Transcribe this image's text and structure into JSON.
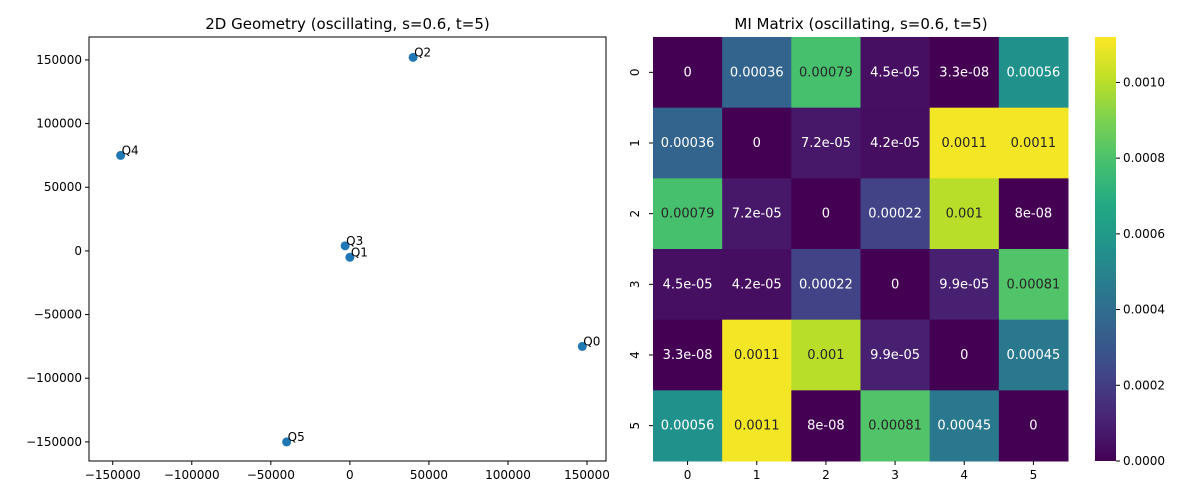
{
  "chart_data": [
    {
      "type": "scatter",
      "title": "2D Geometry (oscillating, s=0.6, t=5)",
      "xlabel": "",
      "ylabel": "",
      "xlim": [
        -165000,
        162000
      ],
      "ylim": [
        -165000,
        168000
      ],
      "x_ticks": [
        -150000,
        -100000,
        -50000,
        0,
        50000,
        100000,
        150000
      ],
      "y_ticks": [
        -150000,
        -100000,
        -50000,
        0,
        50000,
        100000,
        150000
      ],
      "x_tick_labels": [
        "−150000",
        "−100000",
        "−50000",
        "0",
        "50000",
        "100000",
        "150000"
      ],
      "y_tick_labels": [
        "−150000",
        "−100000",
        "−50000",
        "0",
        "50000",
        "100000",
        "150000"
      ],
      "point_color": "#1f77b4",
      "points": [
        {
          "label": "Q0",
          "x": 147000,
          "y": -75000
        },
        {
          "label": "Q1",
          "x": 0,
          "y": -5000
        },
        {
          "label": "Q2",
          "x": 40000,
          "y": 152000
        },
        {
          "label": "Q3",
          "x": -3000,
          "y": 4000
        },
        {
          "label": "Q4",
          "x": -145000,
          "y": 75000
        },
        {
          "label": "Q5",
          "x": -40000,
          "y": -150000
        }
      ]
    },
    {
      "type": "heatmap",
      "title": "MI Matrix (oscillating, s=0.6, t=5)",
      "colormap": "viridis",
      "vmin": 0,
      "vmax": 0.00112,
      "rows": [
        "0",
        "1",
        "2",
        "3",
        "4",
        "5"
      ],
      "cols": [
        "0",
        "1",
        "2",
        "3",
        "4",
        "5"
      ],
      "values": [
        [
          0,
          0.00036,
          0.00079,
          4.5e-05,
          3.3e-08,
          0.00056
        ],
        [
          0.00036,
          0,
          7.2e-05,
          4.2e-05,
          0.0011,
          0.0011
        ],
        [
          0.00079,
          7.2e-05,
          0,
          0.00022,
          0.001,
          8e-08
        ],
        [
          4.5e-05,
          4.2e-05,
          0.00022,
          0,
          9.9e-05,
          0.00081
        ],
        [
          3.3e-08,
          0.0011,
          0.001,
          9.9e-05,
          0,
          0.00045
        ],
        [
          0.00056,
          0.0011,
          8e-08,
          0.00081,
          0.00045,
          0
        ]
      ],
      "annotations": [
        [
          "0",
          "0.00036",
          "0.00079",
          "4.5e-05",
          "3.3e-08",
          "0.00056"
        ],
        [
          "0.00036",
          "0",
          "7.2e-05",
          "4.2e-05",
          "0.0011",
          "0.0011"
        ],
        [
          "0.00079",
          "7.2e-05",
          "0",
          "0.00022",
          "0.001",
          "8e-08"
        ],
        [
          "4.5e-05",
          "4.2e-05",
          "0.00022",
          "0",
          "9.9e-05",
          "0.00081"
        ],
        [
          "3.3e-08",
          "0.0011",
          "0.001",
          "9.9e-05",
          "0",
          "0.00045"
        ],
        [
          "0.00056",
          "0.0011",
          "8e-08",
          "0.00081",
          "0.00045",
          "0"
        ]
      ],
      "colorbar_ticks": [
        0,
        0.0002,
        0.0004,
        0.0006,
        0.0008,
        0.001
      ],
      "colorbar_tick_labels": [
        "0.0000",
        "0.0002",
        "0.0004",
        "0.0006",
        "0.0008",
        "0.0010"
      ]
    }
  ]
}
